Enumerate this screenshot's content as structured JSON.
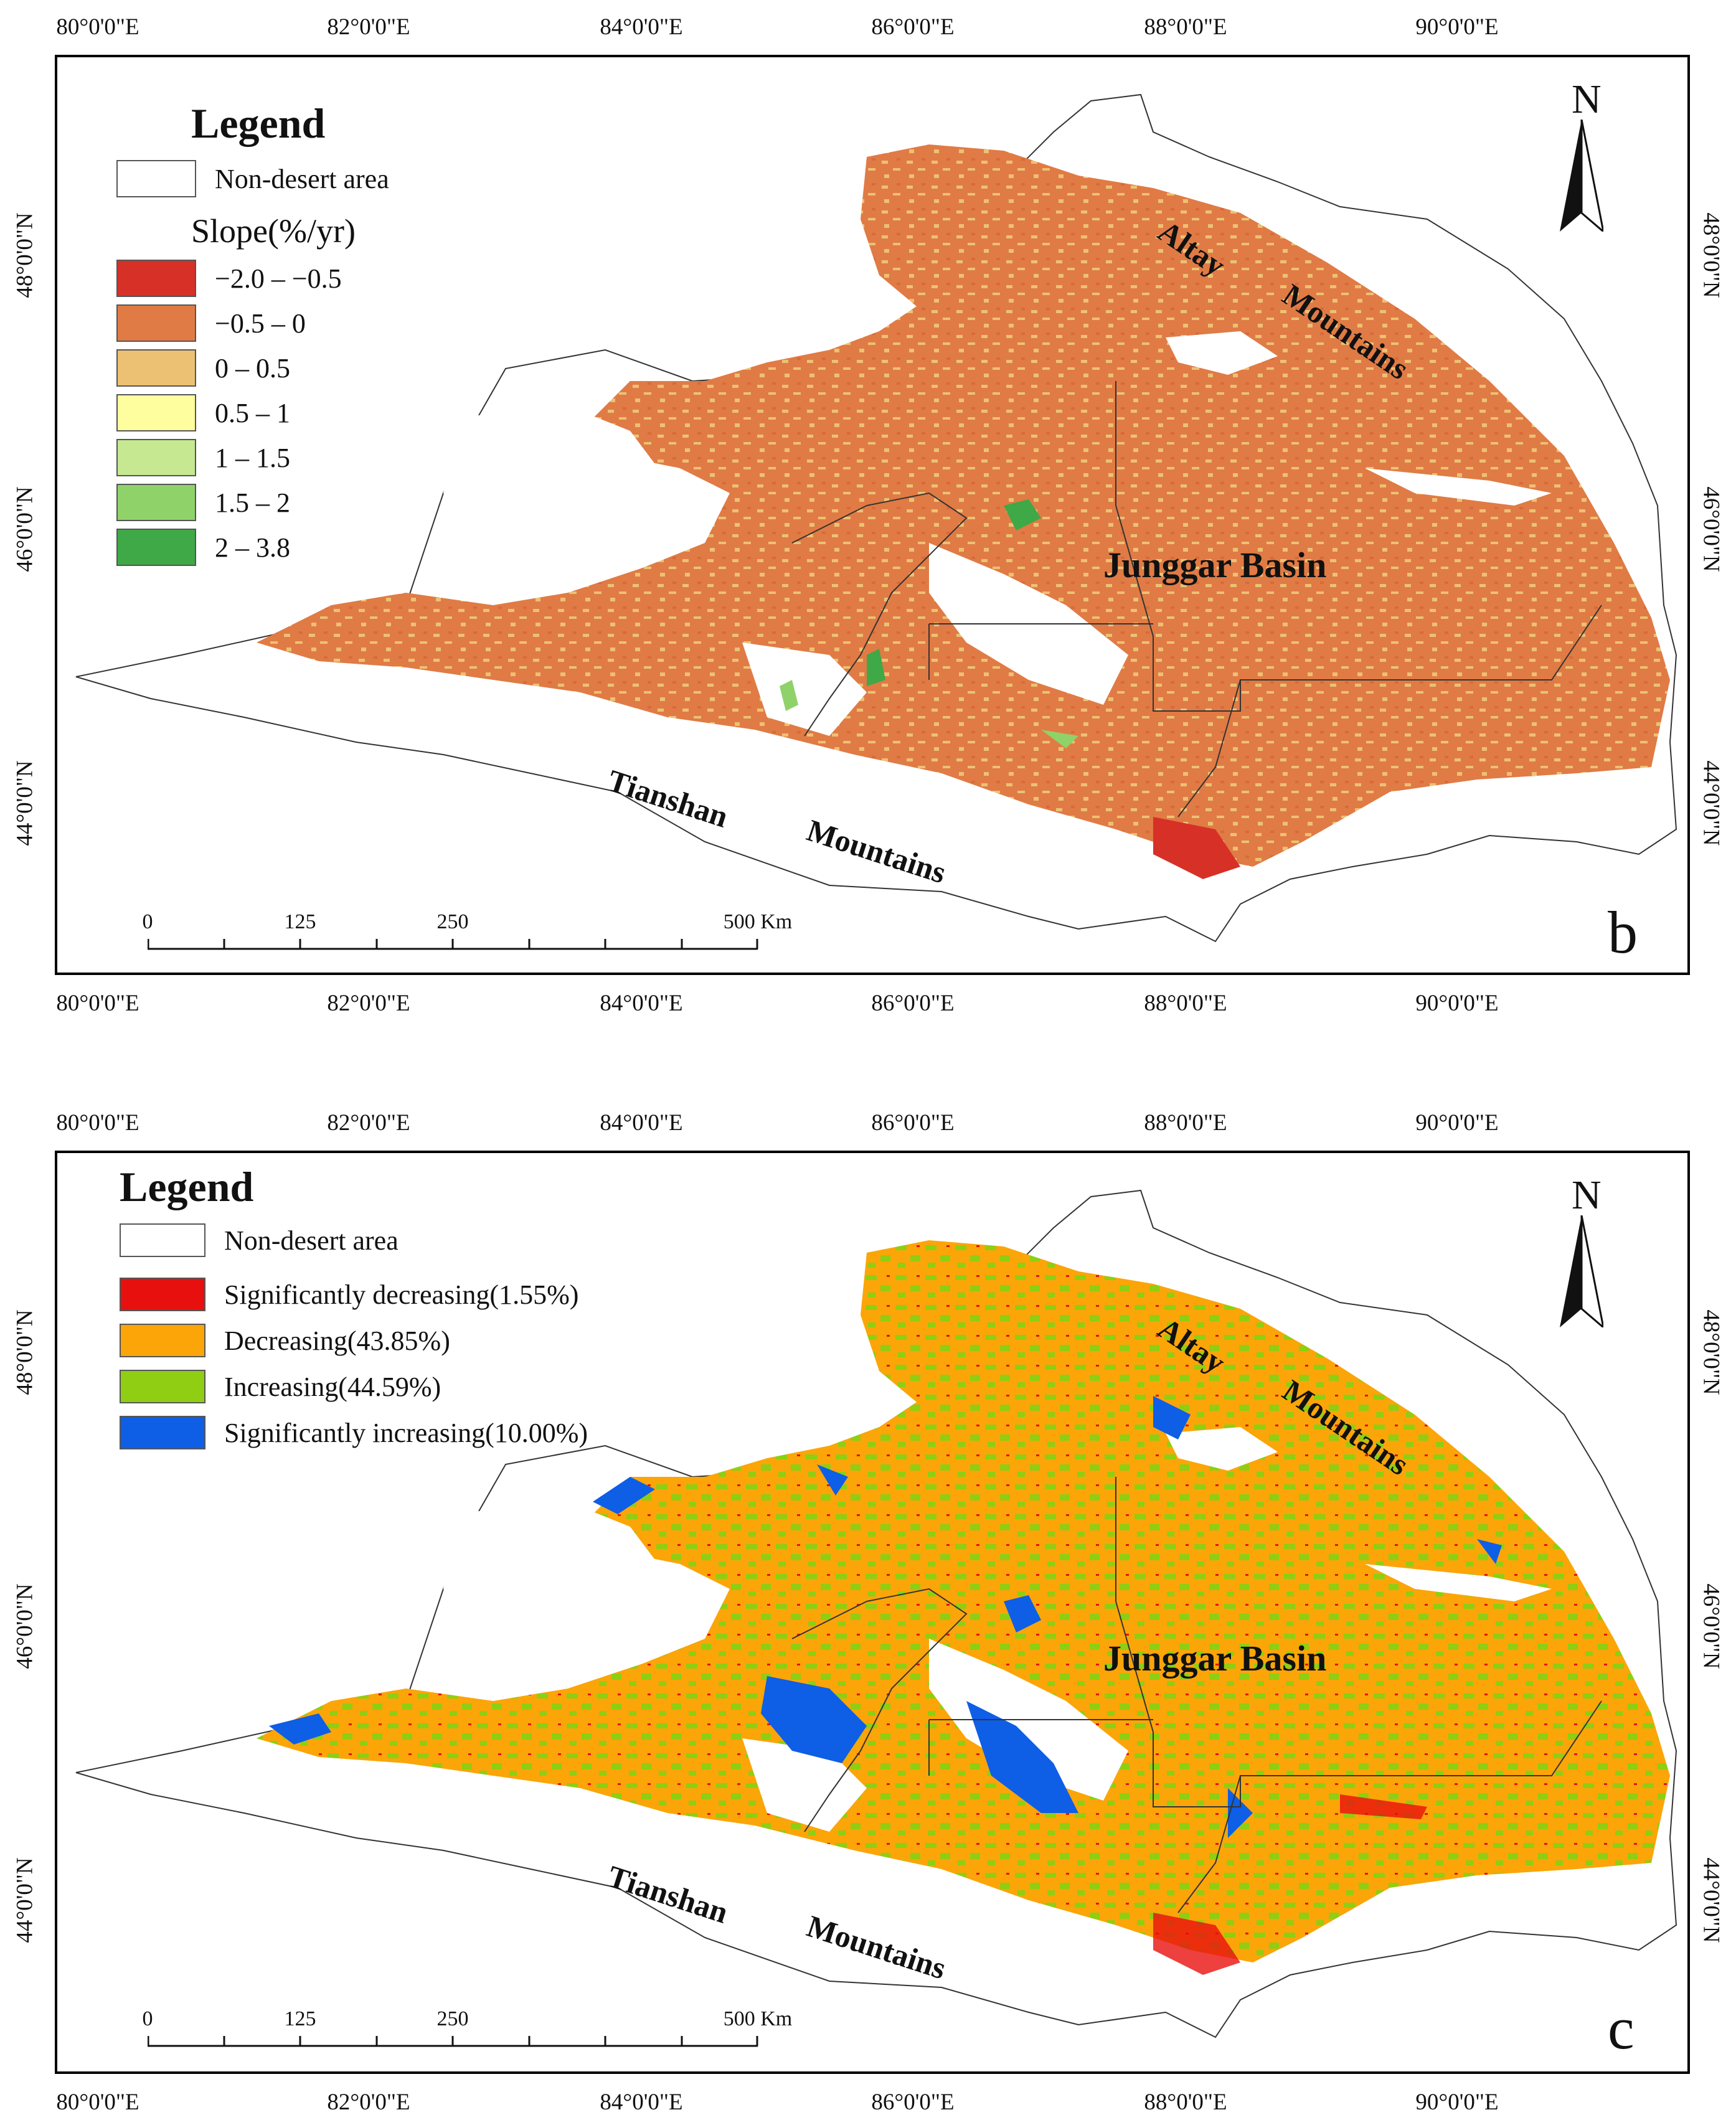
{
  "lon_labels": [
    "80°0'0\"E",
    "82°0'0\"E",
    "84°0'0\"E",
    "86°0'0\"E",
    "88°0'0\"E",
    "90°0'0\"E"
  ],
  "lat_labels": [
    "48°0'0\"N",
    "46°0'0\"N",
    "44°0'0\"N"
  ],
  "places": {
    "altay": "Altay",
    "mountains": "Mountains",
    "junggar": "Junggar Basin",
    "tianshan": "Tianshan",
    "tianshan_mountains": "Mountains"
  },
  "north_label": "N",
  "scale": {
    "labels": [
      "0",
      "125",
      "250",
      "500 Km"
    ]
  },
  "panel_b": {
    "letter": "b",
    "legend_title": "Legend",
    "non_desert": "Non-desert area",
    "slope_title": "Slope(%/yr)",
    "classes": [
      {
        "label": "−2.0 – −0.5",
        "color": "#d73027"
      },
      {
        "label": "−0.5 – 0",
        "color": "#e07b45"
      },
      {
        "label": "0 – 0.5",
        "color": "#ecc173"
      },
      {
        "label": "0.5 – 1",
        "color": "#fefe9f"
      },
      {
        "label": "1 – 1.5",
        "color": "#c5e890"
      },
      {
        "label": "1.5 – 2",
        "color": "#8fd26a"
      },
      {
        "label": "2 – 3.8",
        "color": "#3fa847"
      }
    ]
  },
  "panel_c": {
    "letter": "c",
    "legend_title": "Legend",
    "non_desert": "Non-desert area",
    "classes": [
      {
        "label": "Significantly decreasing(1.55%)",
        "color": "#e8100f"
      },
      {
        "label": "Decreasing(43.85%)",
        "color": "#fba508"
      },
      {
        "label": "Increasing(44.59%)",
        "color": "#8fce12"
      },
      {
        "label": "Significantly increasing(10.00%)",
        "color": "#0e5ee6"
      }
    ]
  }
}
